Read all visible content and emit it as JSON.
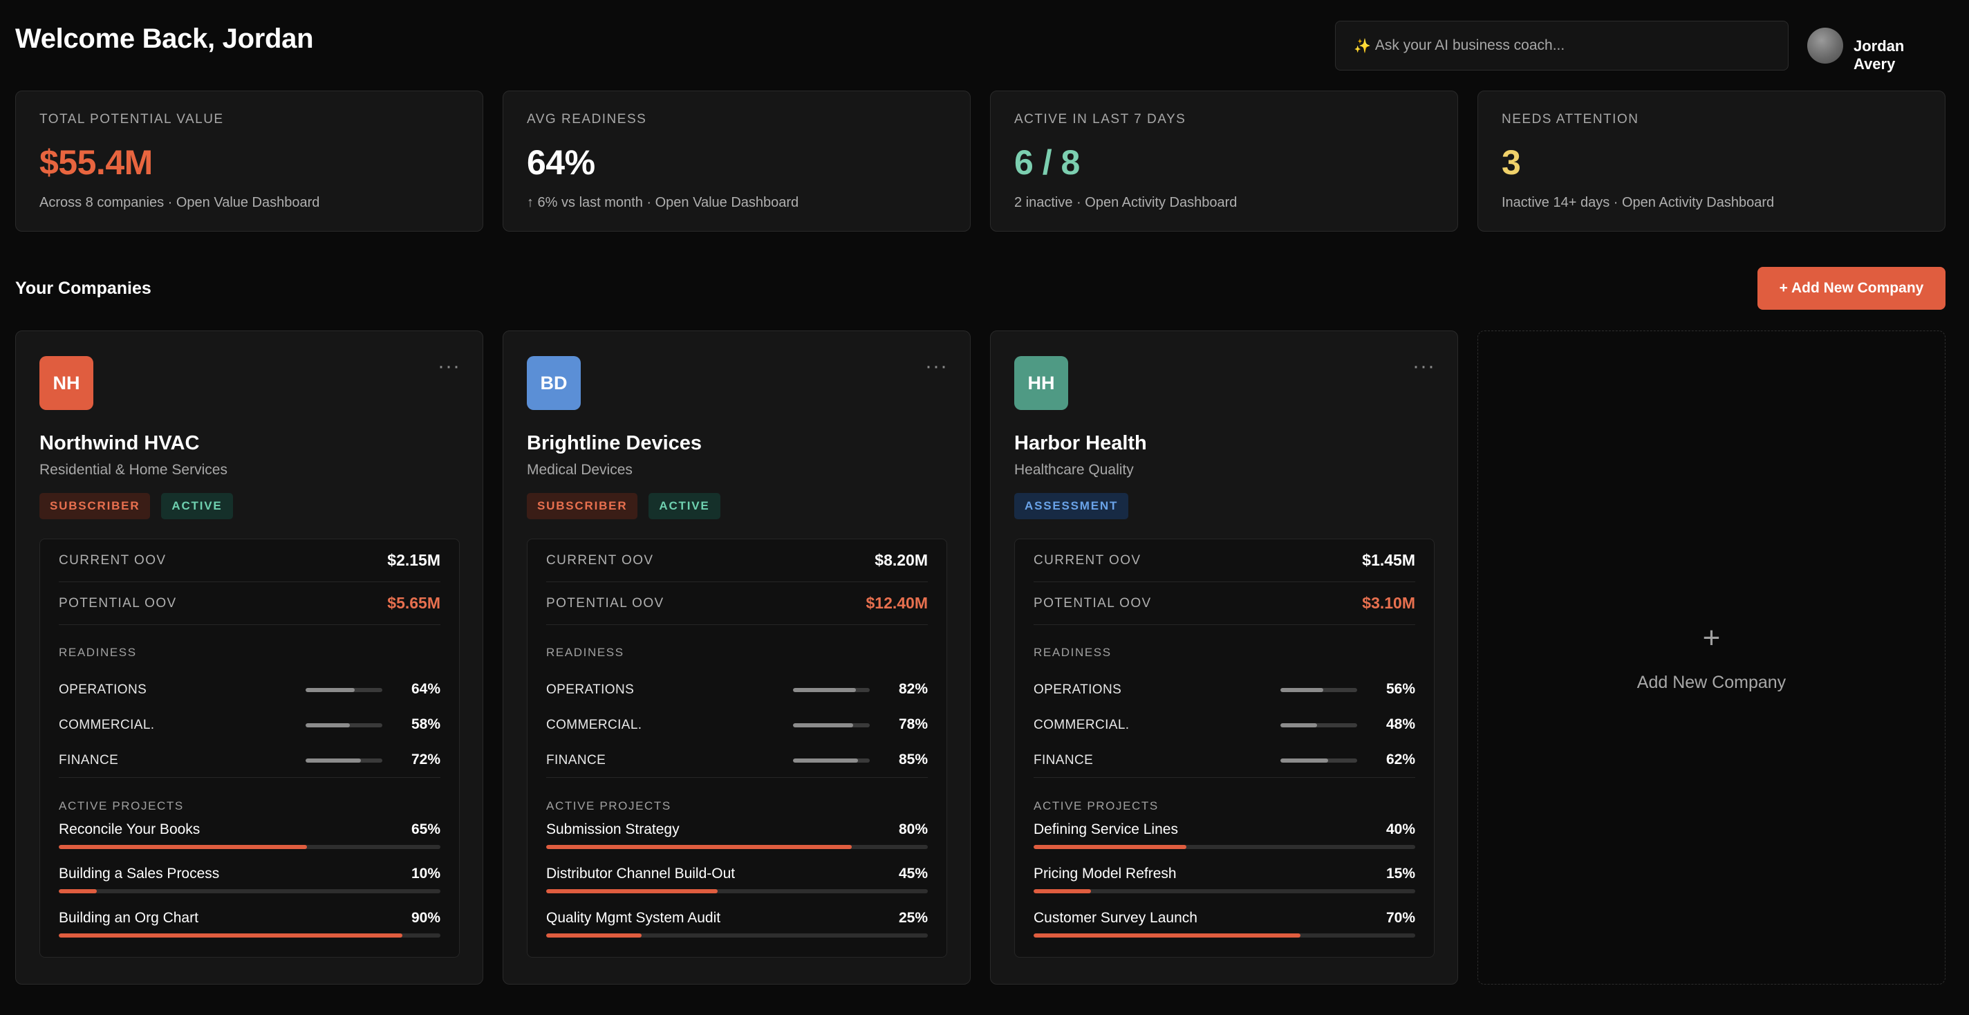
{
  "header": {
    "welcome": "Welcome Back, Jordan",
    "coach_placeholder": "Ask your AI business coach...",
    "coach_icon": "✨",
    "user_name": "Jordan Avery"
  },
  "kpis": [
    {
      "label": "TOTAL POTENTIAL VALUE",
      "value": "$55.4M",
      "sub": "Across 8 companies · Open Value Dashboard",
      "color": "#e8653f"
    },
    {
      "label": "AVG READINESS",
      "value": "64%",
      "sub": "↑ 6% vs last month · Open Value Dashboard",
      "color": "#ffffff"
    },
    {
      "label": "ACTIVE IN LAST 7 DAYS",
      "value": "6 / 8",
      "sub": "2 inactive · Open Activity Dashboard",
      "color": "#7ccfb0"
    },
    {
      "label": "NEEDS ATTENTION",
      "value": "3",
      "sub": "Inactive 14+ days · Open Activity Dashboard",
      "color": "#f0d16a"
    }
  ],
  "section": {
    "title": "Your Companies",
    "add_button": "+ Add New Company"
  },
  "labels": {
    "current_oov": "CURRENT OOV",
    "potential_oov": "POTENTIAL OOV",
    "readiness": "READINESS",
    "active_projects": "ACTIVE PROJECTS",
    "menu": "···"
  },
  "companies": [
    {
      "initials": "NH",
      "logo_color": "#e05d3f",
      "name": "Northwind HVAC",
      "industry": "Residential & Home Services",
      "badges": [
        {
          "text": "SUBSCRIBER",
          "kind": "subscriber"
        },
        {
          "text": "ACTIVE",
          "kind": "active"
        }
      ],
      "current_oov": "$2.15M",
      "potential_oov": "$5.65M",
      "readiness": [
        {
          "label": "OPERATIONS",
          "value": "64%",
          "pct": 64
        },
        {
          "label": "COMMERCIAL.",
          "value": "58%",
          "pct": 58
        },
        {
          "label": "FINANCE",
          "value": "72%",
          "pct": 72
        }
      ],
      "projects": [
        {
          "name": "Reconcile Your Books",
          "value": "65%",
          "pct": 65
        },
        {
          "name": "Building a Sales Process",
          "value": "10%",
          "pct": 10
        },
        {
          "name": "Building an Org Chart",
          "value": "90%",
          "pct": 90
        }
      ]
    },
    {
      "initials": "BD",
      "logo_color": "#5b8fd6",
      "name": "Brightline Devices",
      "industry": "Medical Devices",
      "badges": [
        {
          "text": "SUBSCRIBER",
          "kind": "subscriber"
        },
        {
          "text": "ACTIVE",
          "kind": "active"
        }
      ],
      "current_oov": "$8.20M",
      "potential_oov": "$12.40M",
      "readiness": [
        {
          "label": "OPERATIONS",
          "value": "82%",
          "pct": 82
        },
        {
          "label": "COMMERCIAL.",
          "value": "78%",
          "pct": 78
        },
        {
          "label": "FINANCE",
          "value": "85%",
          "pct": 85
        }
      ],
      "projects": [
        {
          "name": "Submission Strategy",
          "value": "80%",
          "pct": 80
        },
        {
          "name": "Distributor Channel Build-Out",
          "value": "45%",
          "pct": 45
        },
        {
          "name": "Quality Mgmt System Audit",
          "value": "25%",
          "pct": 25
        }
      ]
    },
    {
      "initials": "HH",
      "logo_color": "#4f9a84",
      "name": "Harbor Health",
      "industry": "Healthcare Quality",
      "badges": [
        {
          "text": "ASSESSMENT",
          "kind": "assessment"
        }
      ],
      "current_oov": "$1.45M",
      "potential_oov": "$3.10M",
      "readiness": [
        {
          "label": "OPERATIONS",
          "value": "56%",
          "pct": 56
        },
        {
          "label": "COMMERCIAL.",
          "value": "48%",
          "pct": 48
        },
        {
          "label": "FINANCE",
          "value": "62%",
          "pct": 62
        }
      ],
      "projects": [
        {
          "name": "Defining Service Lines",
          "value": "40%",
          "pct": 40
        },
        {
          "name": "Pricing Model Refresh",
          "value": "15%",
          "pct": 15
        },
        {
          "name": "Customer Survey Launch",
          "value": "70%",
          "pct": 70
        }
      ]
    }
  ],
  "add_card": {
    "plus": "+",
    "label": "Add New Company"
  }
}
